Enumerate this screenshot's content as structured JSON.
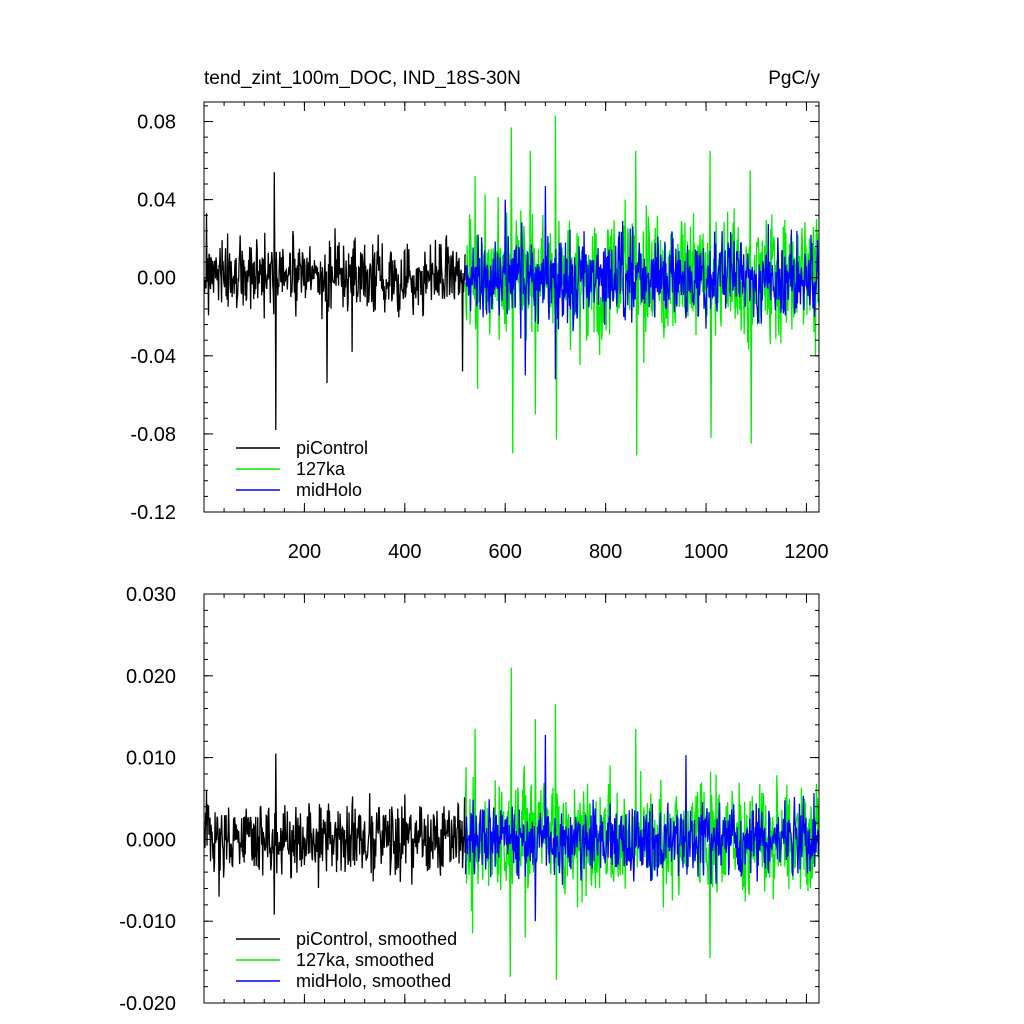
{
  "chart_data": [
    {
      "type": "line",
      "title_left": "tend_zint_100m_DOC, IND_18S-30N",
      "title_right": "PgC/y",
      "xlim": [
        0,
        1225
      ],
      "ylim": [
        -0.12,
        0.09
      ],
      "xticks": [
        200,
        400,
        600,
        800,
        1000,
        1200
      ],
      "xtick_labels": [
        "200",
        "400",
        "600",
        "800",
        "1000",
        "1200"
      ],
      "yticks": [
        -0.12,
        -0.08,
        -0.04,
        0.0,
        0.04,
        0.08
      ],
      "ytick_labels": [
        "-0.12",
        "-0.08",
        "-0.04",
        "0.00",
        "0.04",
        "0.08"
      ],
      "legend": [
        "piControl",
        "127ka",
        "midHolo"
      ],
      "legend_position": "bottom-left",
      "series": [
        {
          "name": "piControl",
          "color": "#000000",
          "x_start": 1,
          "x_end": 520,
          "noise_amplitude": 0.017,
          "peaks": [
            [
              5,
              0.033
            ],
            [
              140,
              0.054
            ],
            [
              143,
              -0.078
            ],
            [
              245,
              -0.054
            ],
            [
              295,
              -0.038
            ],
            [
              515,
              -0.048
            ]
          ]
        },
        {
          "name": "127ka",
          "color": "#00ee00",
          "x_start": 521,
          "x_end": 1225,
          "noise_amplitude": 0.03,
          "peaks": [
            [
              540,
              0.052
            ],
            [
              545,
              -0.057
            ],
            [
              612,
              0.077
            ],
            [
              615,
              -0.09
            ],
            [
              650,
              0.065
            ],
            [
              660,
              -0.07
            ],
            [
              700,
              0.083
            ],
            [
              702,
              -0.083
            ],
            [
              860,
              0.065
            ],
            [
              862,
              -0.091
            ],
            [
              1008,
              0.065
            ],
            [
              1010,
              -0.082
            ],
            [
              1088,
              0.055
            ],
            [
              1090,
              -0.085
            ],
            [
              1220,
              0.03
            ]
          ]
        },
        {
          "name": "midHolo",
          "color": "#0000ff",
          "x_start": 521,
          "x_end": 1225,
          "noise_amplitude": 0.02,
          "peaks": [
            [
              600,
              0.04
            ],
            [
              680,
              0.047
            ],
            [
              700,
              -0.052
            ],
            [
              640,
              -0.05
            ]
          ]
        }
      ]
    },
    {
      "type": "line",
      "xlim": [
        0,
        1225
      ],
      "ylim": [
        -0.02,
        0.03
      ],
      "xticks": [
        200,
        400,
        600,
        800,
        1000,
        1200
      ],
      "yticks": [
        -0.02,
        -0.01,
        0.0,
        0.01,
        0.02,
        0.03
      ],
      "ytick_labels": [
        "-0.020",
        "-0.010",
        "0.000",
        "0.010",
        "0.020",
        "0.030"
      ],
      "legend": [
        "piControl, smoothed",
        "127ka, smoothed",
        "midHolo, smoothed"
      ],
      "legend_position": "bottom-left",
      "series": [
        {
          "name": "piControl, smoothed",
          "color": "#000000",
          "x_start": 1,
          "x_end": 520,
          "noise_amplitude": 0.004,
          "peaks": [
            [
              5,
              0.006
            ],
            [
              143,
              0.0105
            ],
            [
              140,
              -0.0092
            ],
            [
              30,
              -0.007
            ],
            [
              400,
              0.0055
            ]
          ]
        },
        {
          "name": "127ka, smoothed",
          "color": "#00ee00",
          "x_start": 521,
          "x_end": 1225,
          "noise_amplitude": 0.006,
          "peaks": [
            [
              540,
              0.0135
            ],
            [
              535,
              -0.0115
            ],
            [
              612,
              0.021
            ],
            [
              610,
              -0.0168
            ],
            [
              660,
              0.0147
            ],
            [
              700,
              0.0165
            ],
            [
              702,
              -0.0172
            ],
            [
              860,
              0.0135
            ],
            [
              1008,
              -0.0145
            ],
            [
              1220,
              0.0068
            ],
            [
              640,
              -0.012
            ]
          ]
        },
        {
          "name": "midHolo, smoothed",
          "color": "#0000ff",
          "x_start": 521,
          "x_end": 1225,
          "noise_amplitude": 0.004,
          "peaks": [
            [
              680,
              0.0128
            ],
            [
              660,
              -0.01
            ],
            [
              960,
              0.0103
            ]
          ]
        }
      ]
    }
  ]
}
